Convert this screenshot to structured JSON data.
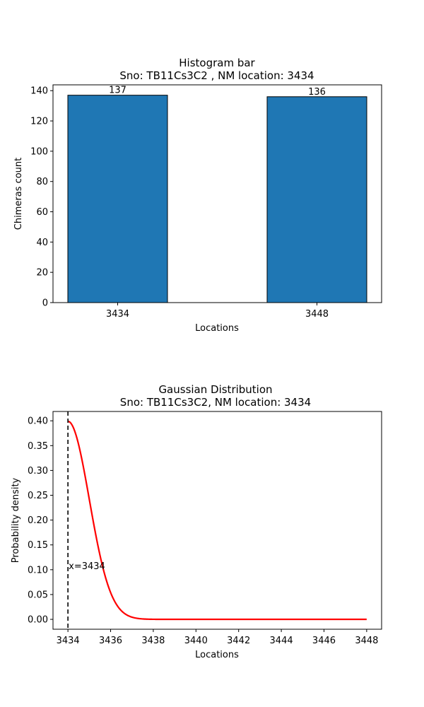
{
  "colors": {
    "bar_fill": "#1f77b4",
    "bar_edge": "#000000",
    "curve": "#ff0000",
    "vline": "#000000"
  },
  "chart_data": [
    {
      "type": "bar",
      "title_line1": "Histogram bar",
      "title_line2": "Sno: TB11Cs3C2 , NM location: 3434",
      "xlabel": "Locations",
      "ylabel": "Chimeras count",
      "categories": [
        "3434",
        "3448"
      ],
      "values": [
        137,
        136
      ],
      "data_labels": [
        "137",
        "136"
      ],
      "ylim": [
        0,
        143.85
      ],
      "yticks": [
        0,
        20,
        40,
        60,
        80,
        100,
        120,
        140
      ],
      "ytick_labels": [
        "0",
        "20",
        "40",
        "60",
        "80",
        "100",
        "120",
        "140"
      ]
    },
    {
      "type": "line",
      "title_line1": "Gaussian Distribution",
      "title_line2": "Sno: TB11Cs3C2, NM location: 3434",
      "xlabel": "Locations",
      "ylabel": "Probability density",
      "series": [
        {
          "name": "gaussian",
          "mean": 3434,
          "std": 1,
          "x_start": 3434,
          "x_end": 3448
        }
      ],
      "xlim": [
        3433.3,
        3448.7
      ],
      "ylim": [
        -0.0199,
        0.4188
      ],
      "xticks": [
        3434,
        3436,
        3438,
        3440,
        3442,
        3444,
        3446,
        3448
      ],
      "xtick_labels": [
        "3434",
        "3436",
        "3438",
        "3440",
        "3442",
        "3444",
        "3446",
        "3448"
      ],
      "yticks": [
        0,
        0.05,
        0.1,
        0.15,
        0.2,
        0.25,
        0.3,
        0.35,
        0.4
      ],
      "ytick_labels": [
        "0.00",
        "0.05",
        "0.10",
        "0.15",
        "0.20",
        "0.25",
        "0.30",
        "0.35",
        "0.40"
      ],
      "vline_x": 3434,
      "vline_label": "x=3434",
      "vline_label_y": 0.108
    }
  ]
}
